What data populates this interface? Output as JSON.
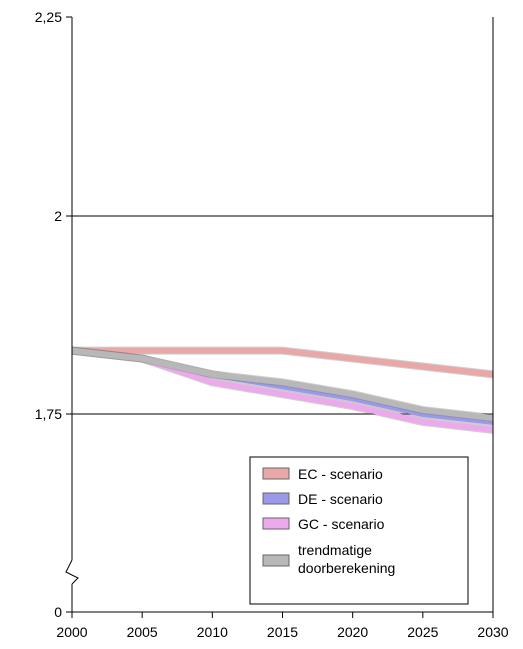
{
  "chart_data": {
    "type": "line",
    "title": "",
    "xlabel": "",
    "ylabel": "",
    "x": [
      2000,
      2005,
      2010,
      2015,
      2020,
      2025,
      2030
    ],
    "xlim": [
      2000,
      2030
    ],
    "ylim": [
      0,
      2.25
    ],
    "y_axis_break": true,
    "y_ticks": [
      "2,25",
      "2",
      "1,75",
      "0"
    ],
    "grid": "horizontal major lines at 2 and 1,75",
    "legend": "bottom-right",
    "series": [
      {
        "name": "EC - scenario",
        "color": "#e8a8a8",
        "values": [
          1.83,
          1.83,
          1.83,
          1.83,
          1.82,
          1.81,
          1.8
        ]
      },
      {
        "name": "DE - scenario",
        "color": "#9a9ae8",
        "values": [
          1.83,
          1.82,
          1.8,
          1.785,
          1.77,
          1.75,
          1.74
        ]
      },
      {
        "name": "GC - scenario",
        "color": "#ecaaec",
        "values": [
          1.83,
          1.82,
          1.79,
          1.775,
          1.76,
          1.74,
          1.73
        ]
      },
      {
        "name": "trendmatige doorberekening",
        "color": "#b8b8b8",
        "values": [
          1.83,
          1.82,
          1.8,
          1.79,
          1.775,
          1.755,
          1.745
        ]
      }
    ]
  }
}
